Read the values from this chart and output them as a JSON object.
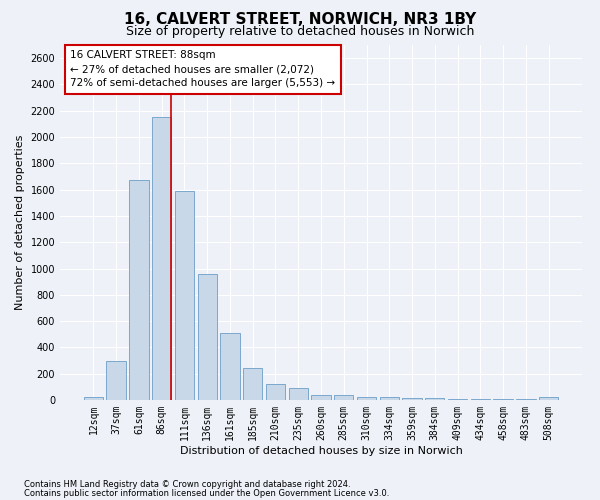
{
  "title": "16, CALVERT STREET, NORWICH, NR3 1BY",
  "subtitle": "Size of property relative to detached houses in Norwich",
  "xlabel": "Distribution of detached houses by size in Norwich",
  "ylabel": "Number of detached properties",
  "footnote1": "Contains HM Land Registry data © Crown copyright and database right 2024.",
  "footnote2": "Contains public sector information licensed under the Open Government Licence v3.0.",
  "bar_color": "#c8d8e8",
  "bar_edge_color": "#7aa8cc",
  "vline_color": "#cc0000",
  "annotation_box_edgecolor": "#cc0000",
  "categories": [
    "12sqm",
    "37sqm",
    "61sqm",
    "86sqm",
    "111sqm",
    "136sqm",
    "161sqm",
    "185sqm",
    "210sqm",
    "235sqm",
    "260sqm",
    "285sqm",
    "310sqm",
    "334sqm",
    "359sqm",
    "384sqm",
    "409sqm",
    "434sqm",
    "458sqm",
    "483sqm",
    "508sqm"
  ],
  "values": [
    20,
    300,
    1670,
    2150,
    1590,
    960,
    510,
    245,
    120,
    95,
    40,
    40,
    20,
    20,
    15,
    15,
    10,
    5,
    10,
    5,
    20
  ],
  "vline_index": 3,
  "annotation_line1": "16 CALVERT STREET: 88sqm",
  "annotation_line2": "← 27% of detached houses are smaller (2,072)",
  "annotation_line3": "72% of semi-detached houses are larger (5,553) →",
  "ylim": [
    0,
    2700
  ],
  "yticks": [
    0,
    200,
    400,
    600,
    800,
    1000,
    1200,
    1400,
    1600,
    1800,
    2000,
    2200,
    2400,
    2600
  ],
  "background_color": "#eef2f8",
  "grid_color": "#ffffff",
  "title_fontsize": 11,
  "subtitle_fontsize": 9,
  "ylabel_fontsize": 8,
  "xlabel_fontsize": 8,
  "tick_fontsize": 7,
  "annotation_fontsize": 7.5,
  "footnote_fontsize": 6
}
